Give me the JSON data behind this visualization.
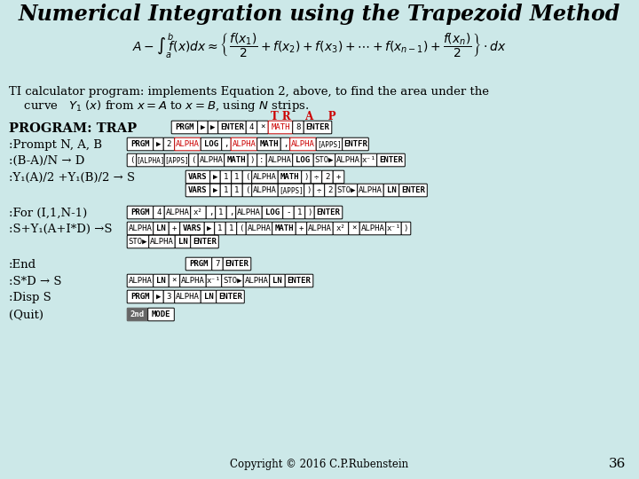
{
  "title": "Numerical Integration using the Trapezoid Method",
  "bg_color": "#cce8e8",
  "red": "#cc0000",
  "copyright": "Copyright © 2016 C.P.Rubenstein",
  "page_num": "36"
}
